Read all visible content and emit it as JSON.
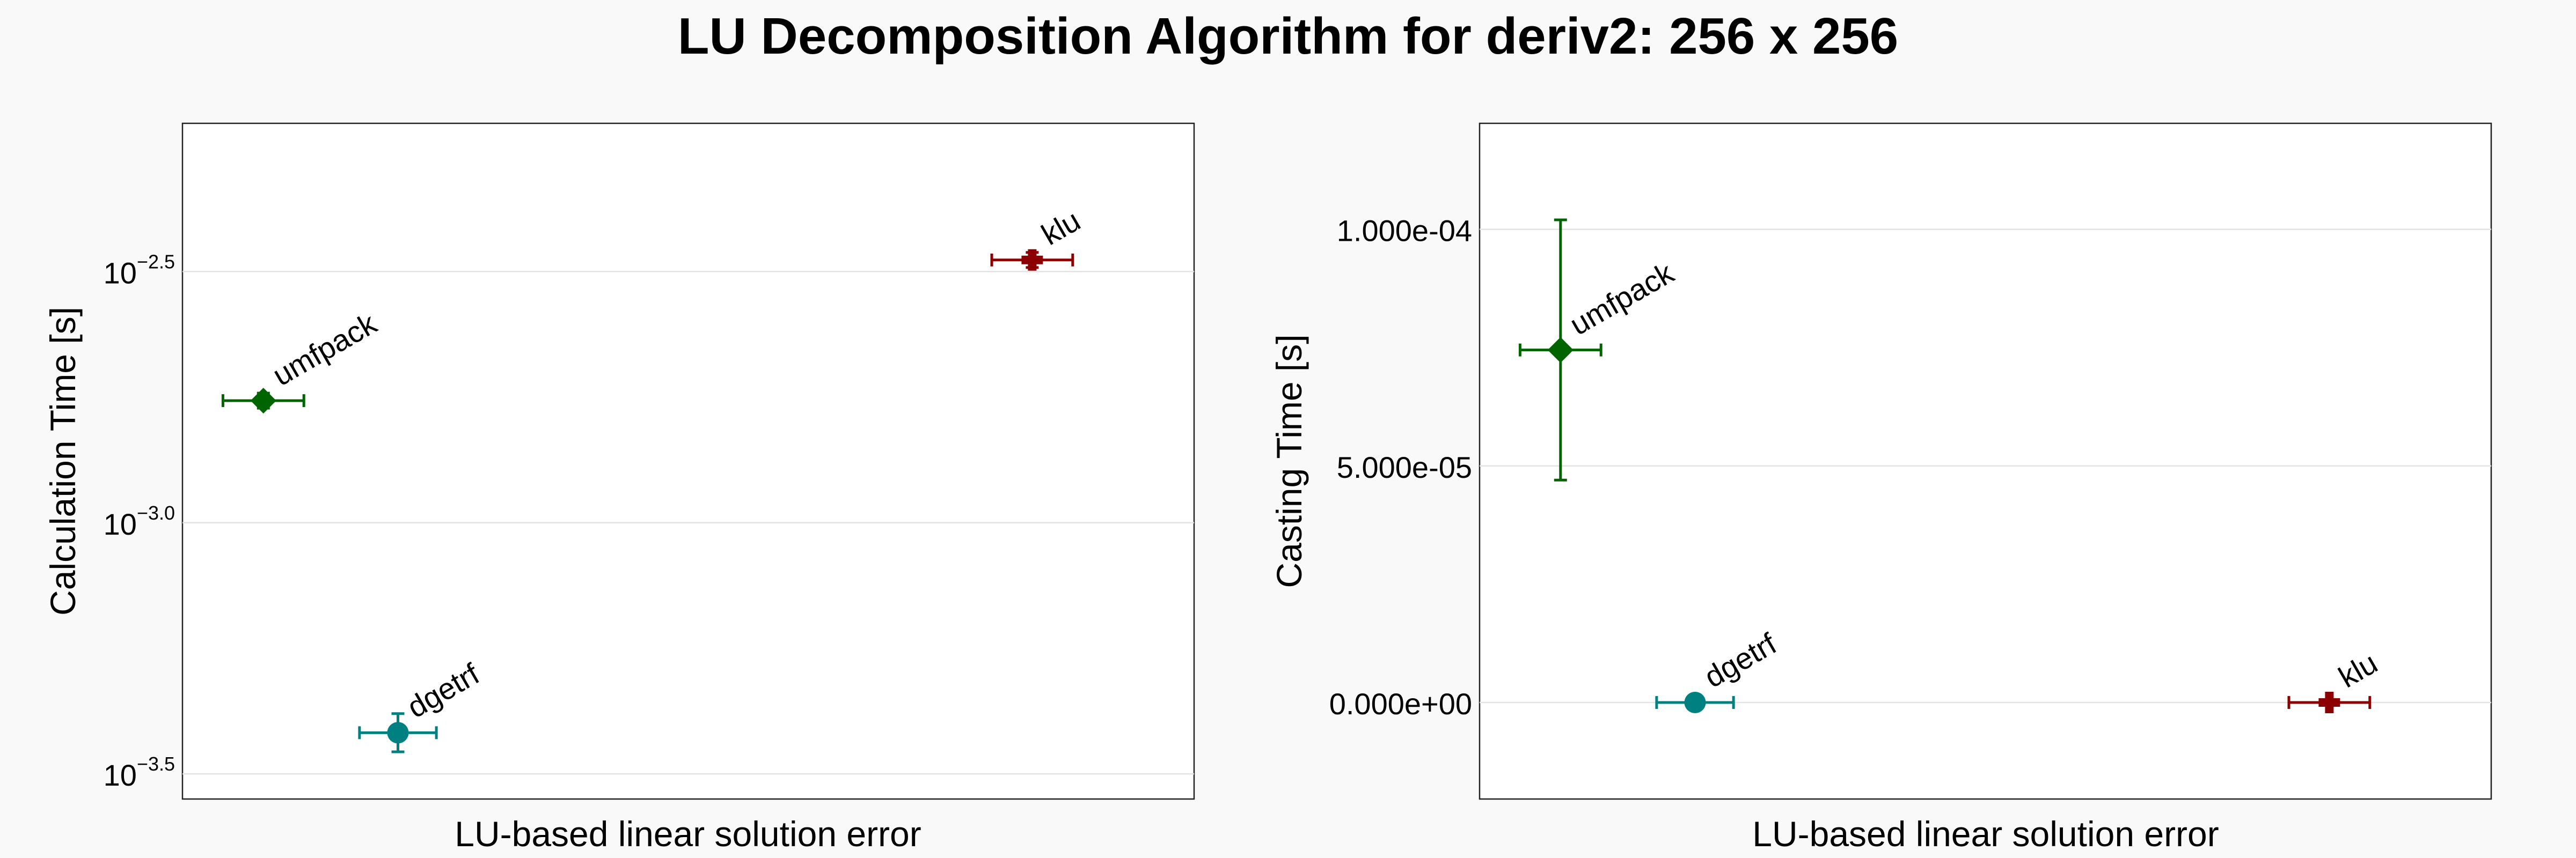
{
  "title": "LU Decomposition Algorithm for deriv2: 256 x 256",
  "chart_data": [
    {
      "type": "scatter",
      "ylabel": "Calculation Time [s]",
      "xlabel": "LU-based linear solution error",
      "yscale": "log10",
      "ylim_log10": [
        -3.55,
        -2.205
      ],
      "yticks": [
        {
          "value": -2.5,
          "base": "10",
          "exp": "−2.5"
        },
        {
          "value": -3.0,
          "base": "10",
          "exp": "−3.0"
        },
        {
          "value": -3.5,
          "base": "10",
          "exp": "−3.5"
        }
      ],
      "grid": true,
      "points": [
        {
          "name": "umfpack",
          "x": 0.08,
          "y_log10": -2.757,
          "xerr": 0.04,
          "yerr_log10": 0.015,
          "marker": "diamond",
          "color": "#006400"
        },
        {
          "name": "dgetrf",
          "x": 0.213,
          "y_log10": -3.418,
          "xerr": 0.038,
          "yerr_log10": 0.038,
          "marker": "circle",
          "color": "#008080"
        },
        {
          "name": "klu",
          "x": 0.84,
          "y_log10": -2.477,
          "xerr": 0.04,
          "yerr_log10": 0.015,
          "marker": "cross",
          "color": "#8b0000"
        }
      ]
    },
    {
      "type": "scatter",
      "ylabel": "Casting Time [s]",
      "xlabel": "LU-based linear solution error",
      "yscale": "linear",
      "ylim": [
        -2.04e-05,
        0.0001224
      ],
      "yticks": [
        {
          "value": 0.0001,
          "label": "1.000e-04"
        },
        {
          "value": 5e-05,
          "label": "5.000e-05"
        },
        {
          "value": 0,
          "label": "0.000e+00"
        }
      ],
      "grid": true,
      "points": [
        {
          "name": "umfpack",
          "x": 0.08,
          "y": 7.45e-05,
          "xerr": 0.04,
          "yerr_low": 2.75e-05,
          "yerr_high": 2.75e-05,
          "marker": "diamond",
          "color": "#006400"
        },
        {
          "name": "dgetrf",
          "x": 0.213,
          "y": 0,
          "xerr": 0.038,
          "yerr_low": 0,
          "yerr_high": 0,
          "marker": "circle",
          "color": "#008080"
        },
        {
          "name": "klu",
          "x": 0.84,
          "y": 0,
          "xerr": 0.04,
          "yerr_low": 0,
          "yerr_high": 0,
          "marker": "cross",
          "color": "#8b0000"
        }
      ]
    }
  ]
}
